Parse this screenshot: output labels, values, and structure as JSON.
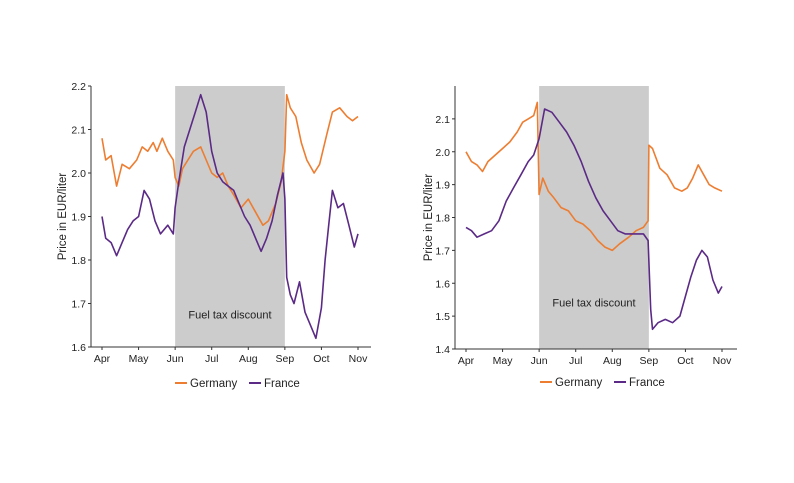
{
  "chart_data": [
    {
      "type": "line",
      "ylabel": "Price in EUR/liter",
      "ylim": [
        1.6,
        2.2
      ],
      "yticks": [
        "1.6",
        "1.7",
        "1.8",
        "1.9",
        "2.0",
        "2.1",
        "2.2"
      ],
      "xticks": [
        "Apr",
        "May",
        "Jun",
        "Jul",
        "Aug",
        "Sep",
        "Oct",
        "Nov"
      ],
      "shaded_label": "Fuel tax discount",
      "shaded_range": [
        "Jun",
        "Sep"
      ],
      "legend_position": "bottom",
      "series": [
        {
          "name": "Germany",
          "color": "#ed7d31",
          "points": [
            [
              0.0,
              2.08
            ],
            [
              0.1,
              2.03
            ],
            [
              0.25,
              2.04
            ],
            [
              0.4,
              1.97
            ],
            [
              0.55,
              2.02
            ],
            [
              0.75,
              2.01
            ],
            [
              0.95,
              2.03
            ],
            [
              1.1,
              2.06
            ],
            [
              1.25,
              2.05
            ],
            [
              1.4,
              2.07
            ],
            [
              1.5,
              2.05
            ],
            [
              1.65,
              2.08
            ],
            [
              1.8,
              2.05
            ],
            [
              1.95,
              2.03
            ],
            [
              2.0,
              1.99
            ],
            [
              2.1,
              1.97
            ],
            [
              2.2,
              2.01
            ],
            [
              2.35,
              2.03
            ],
            [
              2.5,
              2.05
            ],
            [
              2.7,
              2.06
            ],
            [
              2.85,
              2.03
            ],
            [
              3.0,
              2.0
            ],
            [
              3.15,
              1.99
            ],
            [
              3.3,
              2.0
            ],
            [
              3.45,
              1.97
            ],
            [
              3.6,
              1.95
            ],
            [
              3.8,
              1.92
            ],
            [
              4.0,
              1.94
            ],
            [
              4.2,
              1.91
            ],
            [
              4.4,
              1.88
            ],
            [
              4.55,
              1.89
            ],
            [
              4.75,
              1.93
            ],
            [
              4.9,
              1.98
            ],
            [
              5.0,
              2.05
            ],
            [
              5.05,
              2.18
            ],
            [
              5.15,
              2.15
            ],
            [
              5.3,
              2.13
            ],
            [
              5.45,
              2.07
            ],
            [
              5.6,
              2.03
            ],
            [
              5.8,
              2.0
            ],
            [
              5.95,
              2.02
            ],
            [
              6.15,
              2.09
            ],
            [
              6.3,
              2.14
            ],
            [
              6.5,
              2.15
            ],
            [
              6.7,
              2.13
            ],
            [
              6.85,
              2.12
            ],
            [
              7.0,
              2.13
            ]
          ]
        },
        {
          "name": "France",
          "color": "#5b2a86",
          "points": [
            [
              0.0,
              1.9
            ],
            [
              0.1,
              1.85
            ],
            [
              0.25,
              1.84
            ],
            [
              0.4,
              1.81
            ],
            [
              0.55,
              1.84
            ],
            [
              0.7,
              1.87
            ],
            [
              0.85,
              1.89
            ],
            [
              1.0,
              1.9
            ],
            [
              1.15,
              1.96
            ],
            [
              1.3,
              1.94
            ],
            [
              1.45,
              1.89
            ],
            [
              1.6,
              1.86
            ],
            [
              1.8,
              1.88
            ],
            [
              1.95,
              1.86
            ],
            [
              2.0,
              1.92
            ],
            [
              2.1,
              1.98
            ],
            [
              2.25,
              2.06
            ],
            [
              2.4,
              2.1
            ],
            [
              2.55,
              2.14
            ],
            [
              2.7,
              2.18
            ],
            [
              2.85,
              2.14
            ],
            [
              3.0,
              2.05
            ],
            [
              3.15,
              2.0
            ],
            [
              3.3,
              1.98
            ],
            [
              3.45,
              1.97
            ],
            [
              3.6,
              1.96
            ],
            [
              3.75,
              1.93
            ],
            [
              3.9,
              1.9
            ],
            [
              4.05,
              1.88
            ],
            [
              4.2,
              1.85
            ],
            [
              4.35,
              1.82
            ],
            [
              4.5,
              1.85
            ],
            [
              4.65,
              1.89
            ],
            [
              4.8,
              1.95
            ],
            [
              4.95,
              2.0
            ],
            [
              5.0,
              1.94
            ],
            [
              5.05,
              1.76
            ],
            [
              5.15,
              1.72
            ],
            [
              5.25,
              1.7
            ],
            [
              5.4,
              1.75
            ],
            [
              5.55,
              1.68
            ],
            [
              5.7,
              1.65
            ],
            [
              5.85,
              1.62
            ],
            [
              6.0,
              1.69
            ],
            [
              6.1,
              1.8
            ],
            [
              6.2,
              1.88
            ],
            [
              6.3,
              1.96
            ],
            [
              6.45,
              1.92
            ],
            [
              6.6,
              1.93
            ],
            [
              6.75,
              1.88
            ],
            [
              6.9,
              1.83
            ],
            [
              7.0,
              1.86
            ]
          ]
        }
      ]
    },
    {
      "type": "line",
      "ylabel": "Price in EUR/liter",
      "ylim": [
        1.4,
        2.2
      ],
      "yticks": [
        "1.4",
        "1.5",
        "1.6",
        "1.7",
        "1.8",
        "1.9",
        "2.0",
        "2.1"
      ],
      "xticks": [
        "Apr",
        "May",
        "Jun",
        "Jul",
        "Aug",
        "Sep",
        "Oct",
        "Nov"
      ],
      "shaded_label": "Fuel tax discount",
      "shaded_range": [
        "Jun",
        "Sep"
      ],
      "legend_position": "bottom",
      "series": [
        {
          "name": "Germany",
          "color": "#ed7d31",
          "points": [
            [
              0.0,
              2.0
            ],
            [
              0.15,
              1.97
            ],
            [
              0.3,
              1.96
            ],
            [
              0.45,
              1.94
            ],
            [
              0.6,
              1.97
            ],
            [
              0.8,
              1.99
            ],
            [
              1.0,
              2.01
            ],
            [
              1.2,
              2.03
            ],
            [
              1.4,
              2.06
            ],
            [
              1.55,
              2.09
            ],
            [
              1.7,
              2.1
            ],
            [
              1.85,
              2.11
            ],
            [
              1.95,
              2.15
            ],
            [
              2.0,
              1.87
            ],
            [
              2.1,
              1.92
            ],
            [
              2.25,
              1.88
            ],
            [
              2.4,
              1.86
            ],
            [
              2.6,
              1.83
            ],
            [
              2.8,
              1.82
            ],
            [
              3.0,
              1.79
            ],
            [
              3.2,
              1.78
            ],
            [
              3.4,
              1.76
            ],
            [
              3.6,
              1.73
            ],
            [
              3.8,
              1.71
            ],
            [
              4.0,
              1.7
            ],
            [
              4.2,
              1.72
            ],
            [
              4.45,
              1.74
            ],
            [
              4.65,
              1.76
            ],
            [
              4.85,
              1.77
            ],
            [
              4.98,
              1.79
            ],
            [
              5.0,
              2.02
            ],
            [
              5.1,
              2.01
            ],
            [
              5.3,
              1.95
            ],
            [
              5.5,
              1.93
            ],
            [
              5.7,
              1.89
            ],
            [
              5.9,
              1.88
            ],
            [
              6.05,
              1.89
            ],
            [
              6.2,
              1.92
            ],
            [
              6.35,
              1.96
            ],
            [
              6.5,
              1.93
            ],
            [
              6.65,
              1.9
            ],
            [
              6.8,
              1.89
            ],
            [
              7.0,
              1.88
            ]
          ]
        },
        {
          "name": "France",
          "color": "#5b2a86",
          "points": [
            [
              0.0,
              1.77
            ],
            [
              0.15,
              1.76
            ],
            [
              0.3,
              1.74
            ],
            [
              0.5,
              1.75
            ],
            [
              0.7,
              1.76
            ],
            [
              0.9,
              1.79
            ],
            [
              1.1,
              1.85
            ],
            [
              1.3,
              1.89
            ],
            [
              1.5,
              1.93
            ],
            [
              1.7,
              1.97
            ],
            [
              1.85,
              1.99
            ],
            [
              2.0,
              2.04
            ],
            [
              2.15,
              2.13
            ],
            [
              2.35,
              2.12
            ],
            [
              2.55,
              2.09
            ],
            [
              2.75,
              2.06
            ],
            [
              2.95,
              2.02
            ],
            [
              3.15,
              1.97
            ],
            [
              3.35,
              1.91
            ],
            [
              3.55,
              1.86
            ],
            [
              3.75,
              1.82
            ],
            [
              3.95,
              1.79
            ],
            [
              4.15,
              1.76
            ],
            [
              4.35,
              1.75
            ],
            [
              4.6,
              1.75
            ],
            [
              4.85,
              1.75
            ],
            [
              4.98,
              1.73
            ],
            [
              5.05,
              1.52
            ],
            [
              5.1,
              1.46
            ],
            [
              5.25,
              1.48
            ],
            [
              5.45,
              1.49
            ],
            [
              5.65,
              1.48
            ],
            [
              5.85,
              1.5
            ],
            [
              6.0,
              1.56
            ],
            [
              6.15,
              1.62
            ],
            [
              6.3,
              1.67
            ],
            [
              6.45,
              1.7
            ],
            [
              6.6,
              1.68
            ],
            [
              6.75,
              1.61
            ],
            [
              6.9,
              1.57
            ],
            [
              7.0,
              1.59
            ]
          ]
        }
      ]
    }
  ]
}
